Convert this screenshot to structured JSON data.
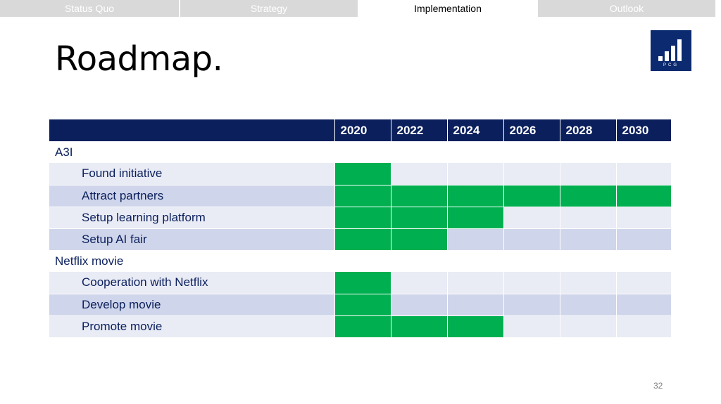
{
  "nav": {
    "tabs": [
      {
        "label": "Status Quo",
        "active": false
      },
      {
        "label": "Strategy",
        "active": false
      },
      {
        "label": "Implementation",
        "active": true
      },
      {
        "label": "Outlook",
        "active": false
      }
    ]
  },
  "title": "Roadmap.",
  "logo": {
    "text": "PCG",
    "icon": "bar-chart-icon",
    "color": "#0b2a6f"
  },
  "colors": {
    "header": "#0a1f5c",
    "active": "#00b050",
    "row_light": "#e9ebf5",
    "row_dark": "#cfd5ea"
  },
  "table": {
    "years": [
      "2020",
      "2022",
      "2024",
      "2026",
      "2028",
      "2030"
    ],
    "groups": [
      {
        "name": "A3I",
        "tasks": [
          {
            "label": "Found initiative",
            "active": [
              true,
              false,
              false,
              false,
              false,
              false
            ]
          },
          {
            "label": "Attract partners",
            "active": [
              true,
              true,
              true,
              true,
              true,
              true
            ]
          },
          {
            "label": "Setup learning platform",
            "active": [
              true,
              true,
              true,
              false,
              false,
              false
            ]
          },
          {
            "label": "Setup AI fair",
            "active": [
              true,
              true,
              false,
              false,
              false,
              false
            ]
          }
        ]
      },
      {
        "name": "Netflix movie",
        "tasks": [
          {
            "label": "Cooperation with Netflix",
            "active": [
              true,
              false,
              false,
              false,
              false,
              false
            ]
          },
          {
            "label": "Develop movie",
            "active": [
              true,
              false,
              false,
              false,
              false,
              false
            ]
          },
          {
            "label": "Promote movie",
            "active": [
              true,
              true,
              true,
              false,
              false,
              false
            ]
          }
        ]
      }
    ]
  },
  "page_number": "32"
}
